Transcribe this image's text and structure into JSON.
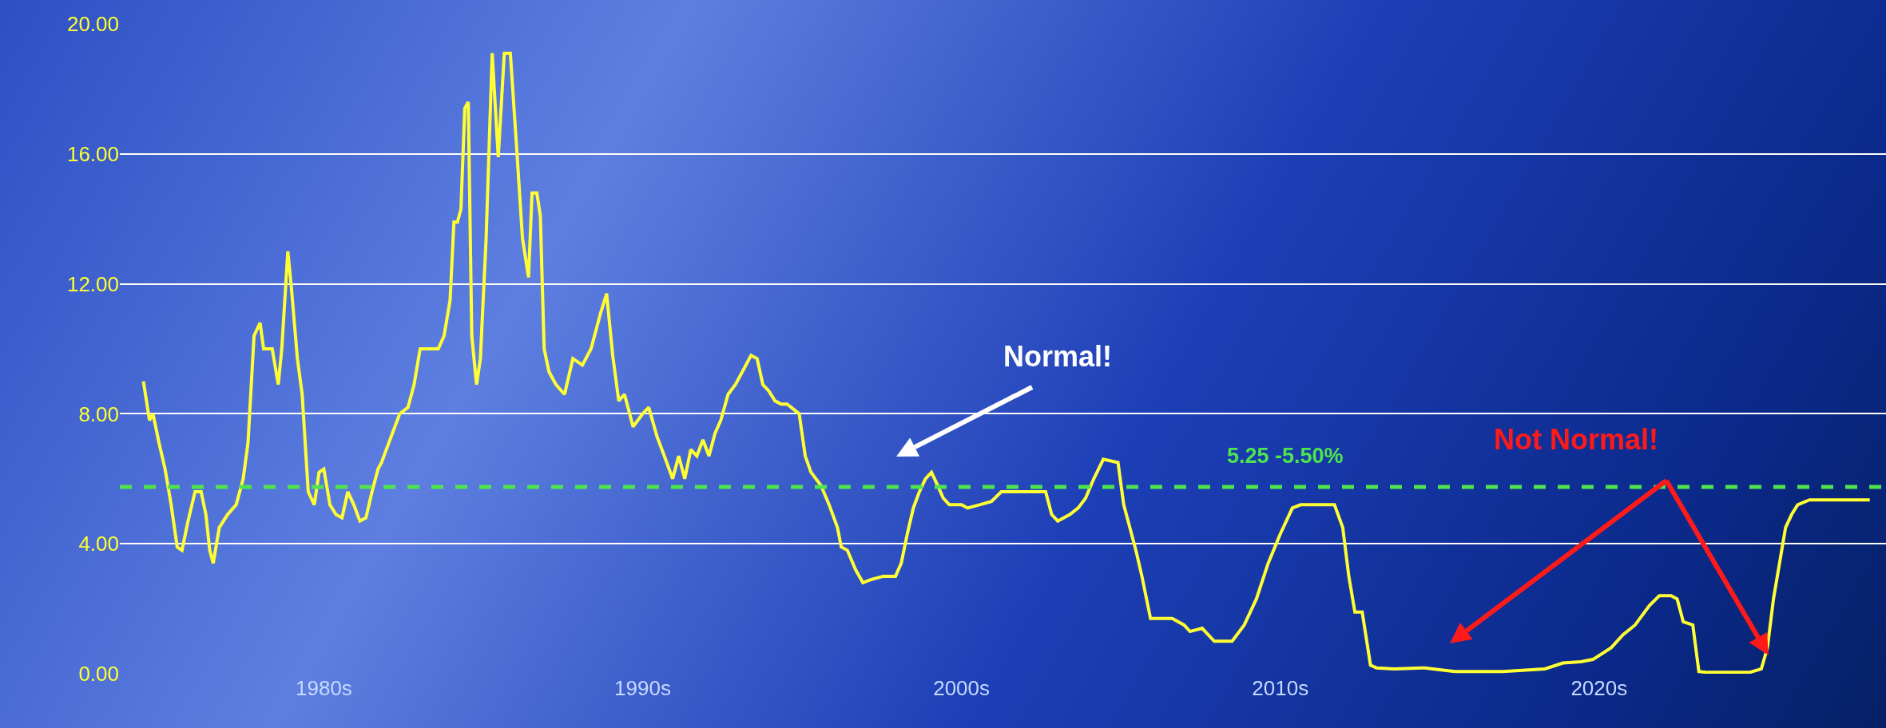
{
  "chart_data": {
    "type": "line",
    "grid": "y",
    "marker": "none",
    "line_style": "solid",
    "xlim": [
      1973.6,
      2029
    ],
    "xticks": [
      {
        "value": 1980,
        "label": "1980s"
      },
      {
        "value": 1990,
        "label": "1990s"
      },
      {
        "value": 2000,
        "label": "2000s"
      },
      {
        "value": 2010,
        "label": "2010s"
      },
      {
        "value": 2020,
        "label": "2020s"
      }
    ],
    "ylim": [
      0,
      20
    ],
    "yticks": [
      {
        "value": 0,
        "label": "0.00"
      },
      {
        "value": 4,
        "label": "4.00"
      },
      {
        "value": 8,
        "label": "8.00"
      },
      {
        "value": 12,
        "label": "12.00"
      },
      {
        "value": 16,
        "label": "16.00"
      },
      {
        "value": 20,
        "label": "20.00"
      }
    ],
    "x": [
      1974.34,
      1974.53,
      1974.64,
      1974.83,
      1975.02,
      1975.21,
      1975.4,
      1975.55,
      1975.74,
      1975.96,
      1976.15,
      1976.3,
      1976.42,
      1976.53,
      1976.72,
      1976.98,
      1977.25,
      1977.47,
      1977.62,
      1977.81,
      1978.0,
      1978.11,
      1978.38,
      1978.57,
      1978.68,
      1978.87,
      1978.98,
      1979.17,
      1979.32,
      1979.51,
      1979.7,
      1979.85,
      1980.0,
      1980.19,
      1980.38,
      1980.57,
      1980.75,
      1980.94,
      1981.13,
      1981.32,
      1981.51,
      1981.7,
      1981.81,
      1981.96,
      1982.15,
      1982.38,
      1982.64,
      1982.83,
      1983.02,
      1983.28,
      1983.59,
      1983.77,
      1983.96,
      1984.08,
      1984.19,
      1984.3,
      1984.42,
      1984.53,
      1984.64,
      1984.79,
      1984.91,
      1985.09,
      1985.28,
      1985.47,
      1985.66,
      1985.85,
      1986.04,
      1986.23,
      1986.42,
      1986.53,
      1986.68,
      1986.79,
      1986.91,
      1987.06,
      1987.28,
      1987.55,
      1987.81,
      1988.11,
      1988.38,
      1988.68,
      1988.87,
      1989.06,
      1989.25,
      1989.43,
      1989.7,
      1990.0,
      1990.19,
      1990.45,
      1990.68,
      1990.94,
      1991.13,
      1991.32,
      1991.51,
      1991.7,
      1991.89,
      1992.08,
      1992.27,
      1992.45,
      1992.68,
      1992.91,
      1993.13,
      1993.4,
      1993.59,
      1993.77,
      1993.96,
      1994.15,
      1994.34,
      1994.53,
      1994.91,
      1995.1,
      1995.28,
      1995.59,
      1995.85,
      1996.11,
      1996.23,
      1996.42,
      1996.68,
      1996.91,
      1997.17,
      1997.55,
      1997.93,
      1998.11,
      1998.3,
      1998.49,
      1998.68,
      1998.87,
      1999.06,
      1999.25,
      1999.43,
      1999.62,
      2000.0,
      2000.19,
      2000.57,
      2000.94,
      2001.25,
      2001.7,
      2002.08,
      2002.64,
      2002.83,
      2003.02,
      2003.4,
      2003.66,
      2003.89,
      2004.15,
      2004.45,
      2004.91,
      2005.09,
      2005.28,
      2005.47,
      2005.66,
      2005.93,
      2006.23,
      2006.61,
      2006.98,
      2007.17,
      2007.55,
      2007.93,
      2008.49,
      2008.87,
      2009.25,
      2009.62,
      2010.0,
      2010.38,
      2010.64,
      2011.7,
      2011.96,
      2012.15,
      2012.34,
      2012.57,
      2012.83,
      2013.02,
      2013.58,
      2014.53,
      2015.47,
      2016.98,
      2018.3,
      2018.87,
      2019.43,
      2019.81,
      2020.38,
      2020.75,
      2021.13,
      2021.58,
      2021.89,
      2022.26,
      2022.45,
      2022.64,
      2022.94,
      2023.13,
      2023.4,
      2024.72,
      2025.09,
      2025.28,
      2025.47,
      2025.66,
      2025.85,
      2026.04,
      2026.23,
      2026.6,
      2027.17,
      2028.49
    ],
    "series": [
      {
        "color": "#ffff33",
        "values": [
          9.0,
          7.8,
          8.0,
          7.1,
          6.3,
          5.2,
          3.9,
          3.8,
          4.7,
          5.6,
          5.6,
          4.9,
          3.8,
          3.4,
          4.5,
          4.9,
          5.2,
          6.0,
          7.1,
          10.4,
          10.8,
          10.0,
          10.0,
          8.9,
          10.0,
          13.0,
          11.9,
          9.7,
          8.6,
          5.6,
          5.2,
          6.2,
          6.3,
          5.2,
          4.9,
          4.8,
          5.6,
          5.2,
          4.7,
          4.8,
          5.6,
          6.3,
          6.5,
          6.9,
          7.4,
          8.0,
          8.2,
          8.9,
          10.0,
          10.0,
          10.0,
          10.4,
          11.5,
          13.9,
          13.9,
          14.3,
          17.4,
          17.6,
          10.4,
          8.9,
          9.7,
          13.4,
          19.1,
          15.9,
          19.1,
          19.1,
          16.3,
          13.4,
          12.2,
          14.8,
          14.8,
          14.1,
          10.0,
          9.3,
          8.9,
          8.6,
          9.7,
          9.5,
          10.0,
          11.1,
          11.7,
          9.8,
          8.4,
          8.6,
          7.6,
          8.0,
          8.2,
          7.3,
          6.7,
          6.0,
          6.7,
          6.0,
          6.9,
          6.7,
          7.2,
          6.7,
          7.4,
          7.8,
          8.6,
          8.9,
          9.3,
          9.8,
          9.7,
          8.9,
          8.7,
          8.4,
          8.3,
          8.3,
          8.0,
          6.7,
          6.2,
          5.8,
          5.2,
          4.5,
          3.9,
          3.8,
          3.2,
          2.8,
          2.9,
          3.0,
          3.0,
          3.4,
          4.3,
          5.1,
          5.6,
          6.0,
          6.2,
          5.8,
          5.4,
          5.2,
          5.2,
          5.1,
          5.2,
          5.3,
          5.6,
          5.6,
          5.6,
          5.6,
          4.9,
          4.7,
          4.9,
          5.1,
          5.4,
          6.0,
          6.6,
          6.5,
          5.2,
          4.5,
          3.8,
          3.0,
          1.7,
          1.7,
          1.7,
          1.5,
          1.3,
          1.4,
          1.0,
          1.0,
          1.5,
          2.3,
          3.4,
          4.3,
          5.1,
          5.2,
          5.2,
          4.5,
          3.0,
          1.9,
          1.9,
          0.26,
          0.18,
          0.15,
          0.18,
          0.07,
          0.07,
          0.15,
          0.33,
          0.37,
          0.44,
          0.8,
          1.2,
          1.5,
          2.1,
          2.4,
          2.4,
          2.3,
          1.6,
          1.5,
          0.07,
          0.04,
          0.04,
          0.15,
          0.8,
          2.3,
          3.4,
          4.5,
          4.9,
          5.2,
          5.35,
          5.35,
          5.35
        ]
      }
    ],
    "ref_lines": [
      {
        "axis": "y",
        "value": 5.75,
        "color": "#4ee44e",
        "line_style": "dashed"
      }
    ],
    "annotations": [
      "Normal!",
      "Not Normal!",
      "5.25 -5.50%"
    ]
  }
}
